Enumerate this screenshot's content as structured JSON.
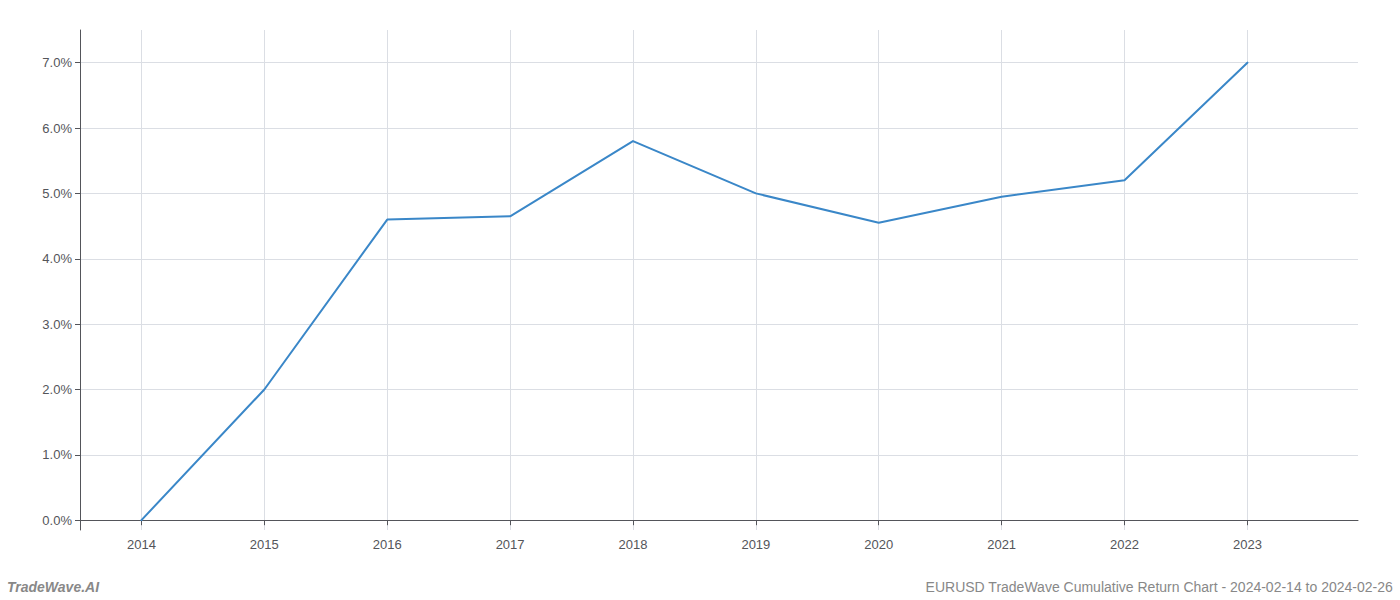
{
  "chart_data": {
    "type": "line",
    "x": [
      2014,
      2015,
      2016,
      2017,
      2018,
      2019,
      2020,
      2021,
      2022,
      2023
    ],
    "values": [
      0.001,
      2.0,
      4.6,
      4.65,
      5.8,
      5.0,
      4.55,
      4.95,
      5.2,
      7.0
    ],
    "color": "#3a87c8",
    "xlim": [
      2013.5,
      2023.9
    ],
    "xticks": [
      2014,
      2015,
      2016,
      2017,
      2018,
      2019,
      2020,
      2021,
      2022,
      2023
    ],
    "ylim": [
      -0.15,
      7.5
    ],
    "yticks": [
      {
        "value": 0.0,
        "label": "0.0%"
      },
      {
        "value": 1.0,
        "label": "1.0%"
      },
      {
        "value": 2.0,
        "label": "2.0%"
      },
      {
        "value": 3.0,
        "label": "3.0%"
      },
      {
        "value": 4.0,
        "label": "4.0%"
      },
      {
        "value": 5.0,
        "label": "5.0%"
      },
      {
        "value": 6.0,
        "label": "6.0%"
      },
      {
        "value": 7.0,
        "label": "7.0%"
      }
    ],
    "grid": true,
    "annotations": [
      "TradeWave.AI",
      "EURUSD TradeWave Cumulative Return Chart - 2024-02-14 to 2024-02-26"
    ]
  }
}
